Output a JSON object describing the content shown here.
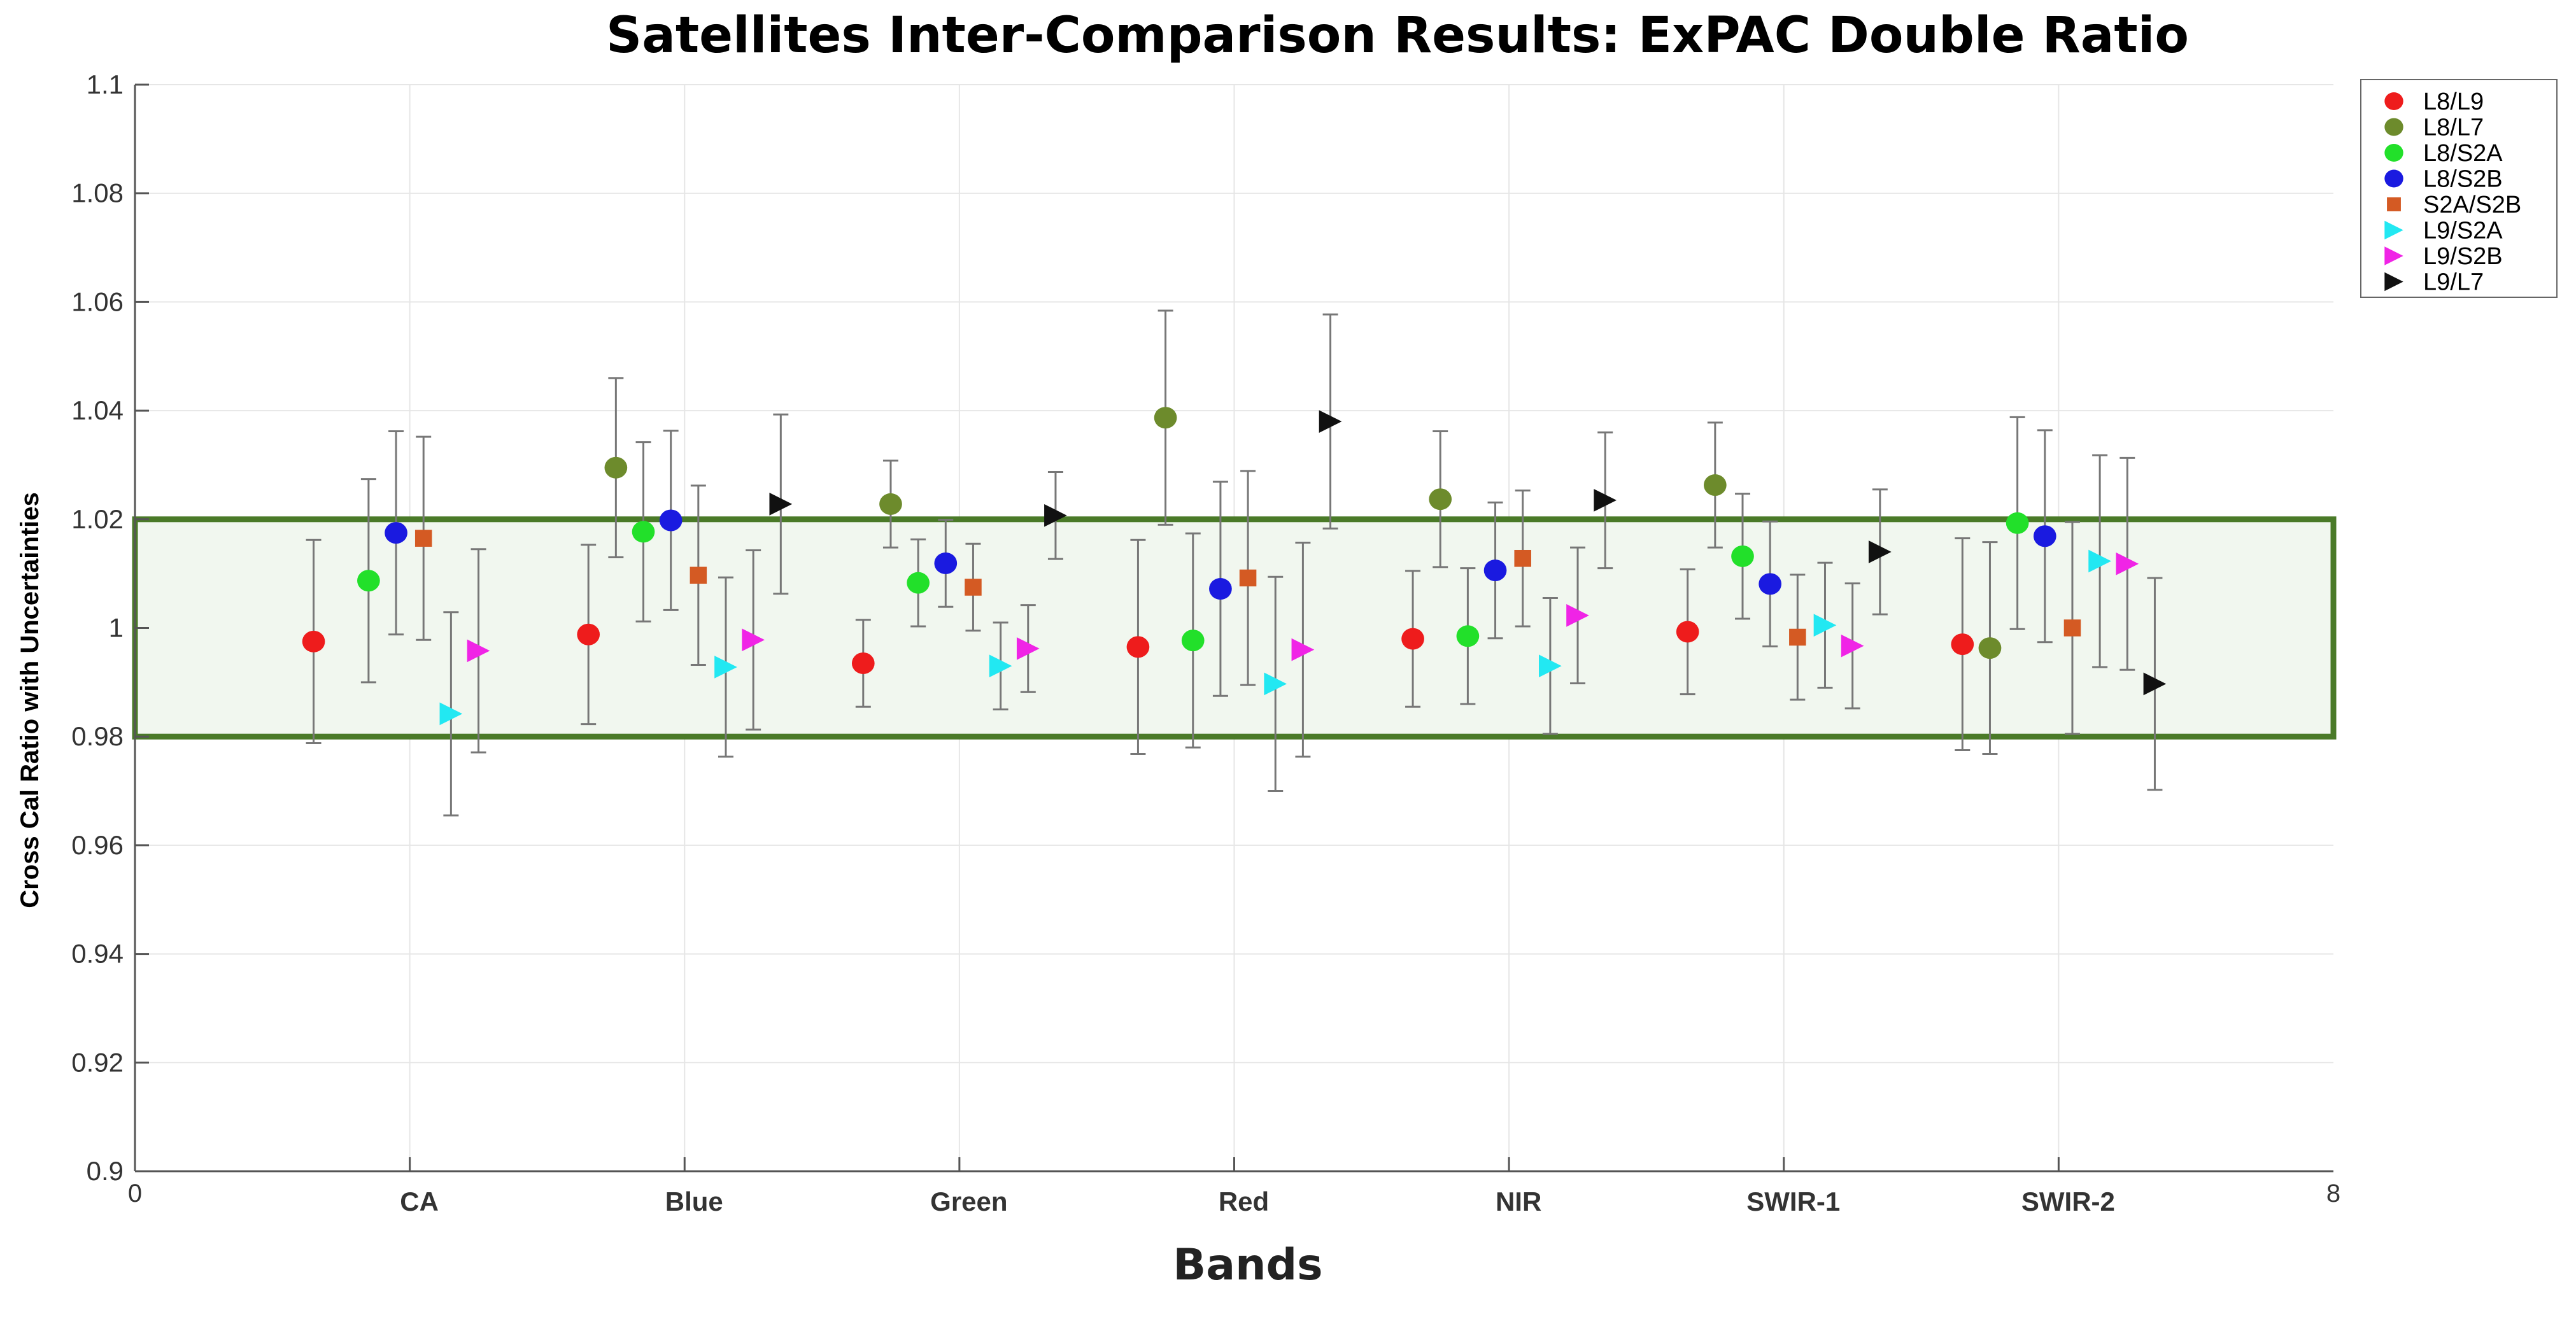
{
  "chart_data": {
    "type": "scatter",
    "title": "Satellites Inter-Comparison Results: ExPAC Double Ratio",
    "xlabel": "Bands",
    "ylabel": "Cross Cal Ratio with Uncertainties",
    "xlim": [
      0,
      8
    ],
    "ylim": [
      0.9,
      1.1
    ],
    "yticks": [
      "0.9",
      "0.92",
      "0.94",
      "0.96",
      "0.98",
      "1",
      "1.02",
      "1.04",
      "1.06",
      "1.08",
      "1.1"
    ],
    "xtick_ends": [
      "0",
      "8"
    ],
    "categories": [
      "CA",
      "Blue",
      "Green",
      "Red",
      "NIR",
      "SWIR-1",
      "SWIR-2"
    ],
    "grid": true,
    "band": {
      "ymin": 0.98,
      "ymax": 1.02,
      "edge_color": "#4a7a28",
      "fill_color": "#f1f7ef"
    },
    "legend_position": "top-right outside",
    "series": [
      {
        "name": "L8/L9",
        "marker": "circle",
        "color": "#ee1c1c",
        "x": [
          0.65,
          1.65,
          2.65,
          3.65,
          4.65,
          5.65,
          6.65
        ],
        "y": [
          0.9975,
          0.9988,
          0.9935,
          0.9965,
          0.998,
          0.9993,
          0.997
        ],
        "err": [
          0.0187,
          0.0165,
          0.008,
          0.0197,
          0.0125,
          0.0115,
          0.0195
        ]
      },
      {
        "name": "L8/L7",
        "marker": "circle",
        "color": "#6d8b2c",
        "x": [
          null,
          1.75,
          2.75,
          3.75,
          4.75,
          5.75,
          6.75
        ],
        "y": [
          null,
          1.0295,
          1.0228,
          1.0387,
          1.0237,
          1.0263,
          0.9963
        ],
        "err": [
          null,
          0.0165,
          0.008,
          0.0197,
          0.0125,
          0.0115,
          0.0195
        ]
      },
      {
        "name": "L8/S2A",
        "marker": "circle",
        "color": "#22e02a",
        "x": [
          0.85,
          1.85,
          2.85,
          3.85,
          4.85,
          5.85,
          6.85
        ],
        "y": [
          1.0087,
          1.0177,
          1.0083,
          0.9977,
          0.9985,
          1.0132,
          1.0193
        ],
        "err": [
          0.0187,
          0.0165,
          0.008,
          0.0197,
          0.0125,
          0.0115,
          0.0195
        ]
      },
      {
        "name": "L8/S2B",
        "marker": "circle",
        "color": "#1a1ae0",
        "x": [
          0.95,
          1.95,
          2.95,
          3.95,
          4.95,
          5.95,
          6.95
        ],
        "y": [
          1.0175,
          1.0198,
          1.0119,
          1.0072,
          1.0106,
          1.0081,
          1.0169
        ],
        "err": [
          0.0187,
          0.0165,
          0.008,
          0.0197,
          0.0125,
          0.0115,
          0.0195
        ]
      },
      {
        "name": "S2A/S2B",
        "marker": "square",
        "color": "#d45a23",
        "x": [
          1.05,
          2.05,
          3.05,
          4.05,
          5.05,
          6.05,
          7.05
        ],
        "y": [
          1.0165,
          1.0097,
          1.0075,
          1.0092,
          1.0128,
          0.9983,
          1.0
        ],
        "err": [
          0.0187,
          0.0165,
          0.008,
          0.0197,
          0.0125,
          0.0115,
          0.0195
        ]
      },
      {
        "name": "L9/S2A",
        "marker": "triangle-right",
        "color": "#22e8f2",
        "x": [
          1.15,
          2.15,
          3.15,
          4.15,
          5.15,
          6.15,
          7.15
        ],
        "y": [
          0.9842,
          0.9928,
          0.993,
          0.9897,
          0.993,
          1.0005,
          1.0123
        ],
        "err": [
          0.0187,
          0.0165,
          0.008,
          0.0197,
          0.0125,
          0.0115,
          0.0195
        ]
      },
      {
        "name": "L9/S2B",
        "marker": "triangle-right",
        "color": "#f024e6",
        "x": [
          1.25,
          2.25,
          3.25,
          4.25,
          5.25,
          6.25,
          7.25
        ],
        "y": [
          0.9958,
          0.9978,
          0.9962,
          0.996,
          1.0023,
          0.9967,
          1.0118
        ],
        "err": [
          0.0187,
          0.0165,
          0.008,
          0.0197,
          0.0125,
          0.0115,
          0.0195
        ]
      },
      {
        "name": "L9/L7",
        "marker": "triangle-right",
        "color": "#111111",
        "x": [
          null,
          2.35,
          3.35,
          4.35,
          5.35,
          6.35,
          7.35
        ],
        "y": [
          null,
          1.0228,
          1.0207,
          1.038,
          1.0235,
          1.014,
          0.9897
        ],
        "err": [
          null,
          0.0165,
          0.008,
          0.0197,
          0.0125,
          0.0115,
          0.0195
        ]
      }
    ]
  }
}
